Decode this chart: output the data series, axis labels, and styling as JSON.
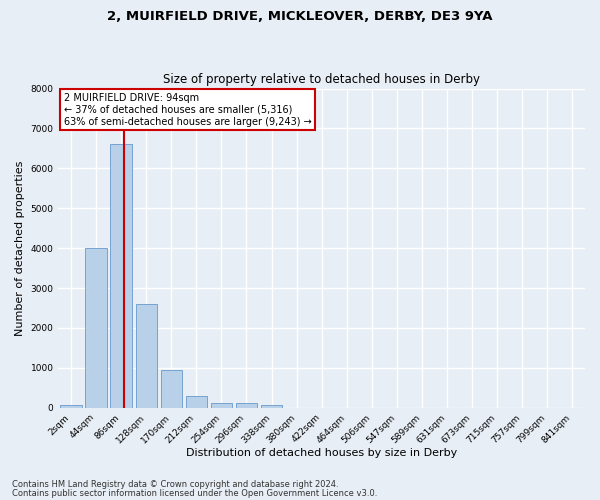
{
  "title_line1": "2, MUIRFIELD DRIVE, MICKLEOVER, DERBY, DE3 9YA",
  "title_line2": "Size of property relative to detached houses in Derby",
  "xlabel": "Distribution of detached houses by size in Derby",
  "ylabel": "Number of detached properties",
  "bar_labels": [
    "2sqm",
    "44sqm",
    "86sqm",
    "128sqm",
    "170sqm",
    "212sqm",
    "254sqm",
    "296sqm",
    "338sqm",
    "380sqm",
    "422sqm",
    "464sqm",
    "506sqm",
    "547sqm",
    "589sqm",
    "631sqm",
    "673sqm",
    "715sqm",
    "757sqm",
    "799sqm",
    "841sqm"
  ],
  "bar_values": [
    80,
    4000,
    6620,
    2600,
    950,
    305,
    120,
    110,
    70,
    0,
    0,
    0,
    0,
    0,
    0,
    0,
    0,
    0,
    0,
    0,
    0
  ],
  "bar_color": "#b8d0e8",
  "bar_edge_color": "#6699cc",
  "vline_color": "#cc0000",
  "vline_pos": 2.1,
  "ylim_min": 0,
  "ylim_max": 8000,
  "yticks": [
    0,
    1000,
    2000,
    3000,
    4000,
    5000,
    6000,
    7000,
    8000
  ],
  "annotation_text": "2 MUIRFIELD DRIVE: 94sqm\n← 37% of detached houses are smaller (5,316)\n63% of semi-detached houses are larger (9,243) →",
  "annotation_box_facecolor": "#ffffff",
  "annotation_box_edgecolor": "#cc0000",
  "footer_line1": "Contains HM Land Registry data © Crown copyright and database right 2024.",
  "footer_line2": "Contains public sector information licensed under the Open Government Licence v3.0.",
  "background_color": "#e8eef5",
  "grid_color": "#ffffff",
  "title_fontsize": 9.5,
  "subtitle_fontsize": 8.5,
  "axis_label_fontsize": 8,
  "tick_fontsize": 6.5,
  "annot_fontsize": 7,
  "footer_fontsize": 6
}
